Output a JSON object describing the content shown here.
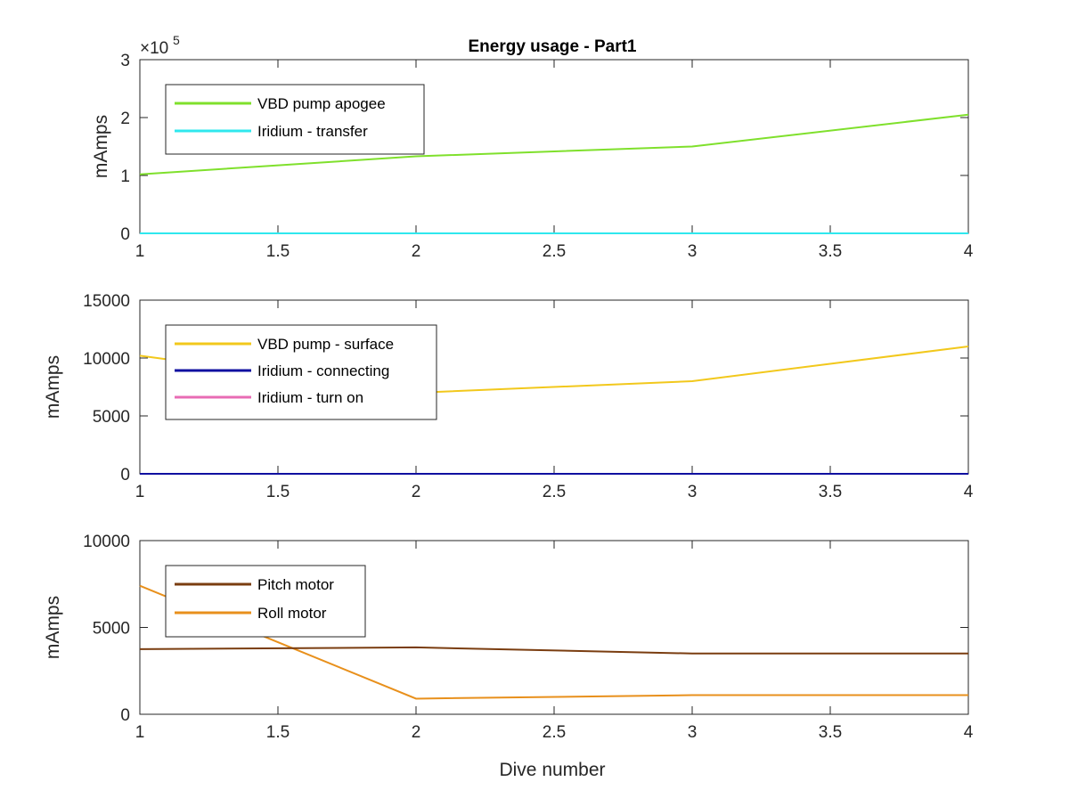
{
  "figure": {
    "title": "Energy usage - Part1",
    "xlabel": "Dive number"
  },
  "chart_data": [
    {
      "type": "line",
      "title": "Energy usage - Part1",
      "xlabel": "",
      "ylabel": "mAmps",
      "exponent_label": "×10",
      "exponent_power": "5",
      "xlim": [
        1,
        4
      ],
      "ylim": [
        0,
        3
      ],
      "x_ticks": [
        "1",
        "1.5",
        "2",
        "2.5",
        "3",
        "3.5",
        "4"
      ],
      "y_ticks": [
        "0",
        "1",
        "2",
        "3"
      ],
      "legend_placement": "top-left",
      "x": [
        1,
        2,
        3,
        4
      ],
      "series": [
        {
          "name": "VBD pump apogee",
          "color": "#7fe02c",
          "values": [
            1.02,
            1.33,
            1.5,
            2.05
          ]
        },
        {
          "name": "Iridium - transfer",
          "color": "#2fe8ee",
          "values": [
            0,
            0,
            0,
            0
          ]
        }
      ]
    },
    {
      "type": "line",
      "ylabel": "mAmps",
      "xlim": [
        1,
        4
      ],
      "ylim": [
        0,
        15000
      ],
      "x_ticks": [
        "1",
        "1.5",
        "2",
        "2.5",
        "3",
        "3.5",
        "4"
      ],
      "y_ticks": [
        "0",
        "5000",
        "10000",
        "15000"
      ],
      "legend_placement": "top-left",
      "x": [
        1,
        2,
        3,
        4
      ],
      "series": [
        {
          "name": "VBD pump - surface",
          "color": "#f2c81c",
          "values": [
            10200,
            7000,
            8000,
            11000
          ]
        },
        {
          "name": "Iridium - connecting",
          "color": "#1010a0",
          "values": [
            0,
            0,
            0,
            0
          ]
        },
        {
          "name": "Iridium - turn on",
          "color": "#e86cb4",
          "values": [
            0,
            0,
            0,
            0
          ]
        }
      ]
    },
    {
      "type": "line",
      "ylabel": "mAmps",
      "xlabel": "Dive number",
      "xlim": [
        1,
        4
      ],
      "ylim": [
        0,
        10000
      ],
      "x_ticks": [
        "1",
        "1.5",
        "2",
        "2.5",
        "3",
        "3.5",
        "4"
      ],
      "y_ticks": [
        "0",
        "5000",
        "10000"
      ],
      "legend_placement": "top-left",
      "x": [
        1,
        2,
        3,
        4
      ],
      "series": [
        {
          "name": "Pitch motor",
          "color": "#7a3d10",
          "values": [
            3750,
            3850,
            3500,
            3500
          ]
        },
        {
          "name": "Roll motor",
          "color": "#e8901c",
          "values": [
            7400,
            900,
            1100,
            1100
          ]
        }
      ]
    }
  ]
}
